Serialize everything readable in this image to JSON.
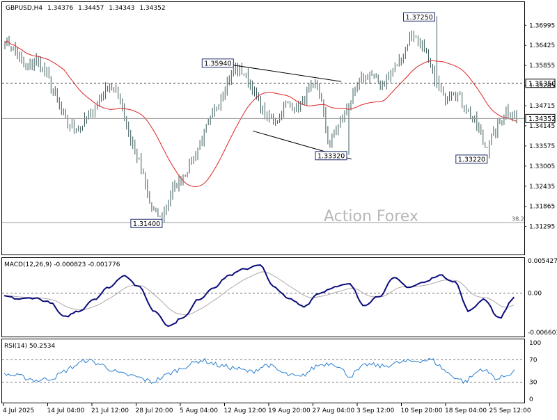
{
  "header": {
    "symbol": "GBPUSD,H4",
    "open": "1.34376",
    "high": "1.34457",
    "low": "1.34343",
    "close": "1.34352"
  },
  "watermark": "Action Forex",
  "colors": {
    "candle": "#3d5c5c",
    "ma": "#dd2222",
    "macd": "#0a0a7a",
    "macd_signal": "#b0a8a8",
    "rsi": "#2a7fd0",
    "grid": "#000000"
  },
  "chart_data": [
    {
      "type": "candlestick",
      "name": "price",
      "ylim": [
        1.305,
        1.3765
      ],
      "y_ticks": [
        "1.36995",
        "1.36425",
        "1.35855",
        "1.35285",
        "1.34715",
        "1.34145",
        "1.33575",
        "1.33005",
        "1.32435",
        "1.31865",
        "1.31295"
      ],
      "x_ticks": [
        "4 Jul 2025",
        "14 Jul 04:00",
        "21 Jul 12:00",
        "28 Jul 20:00",
        "5 Aug 04:00",
        "12 Aug 12:00",
        "19 Aug 20:00",
        "27 Aug 04:00",
        "3 Sep 12:00",
        "10 Sep 20:00",
        "18 Sep 04:00",
        "25 Sep 12:00"
      ],
      "anchors_close": [
        1.366,
        1.3625,
        1.3575,
        1.36,
        1.356,
        1.3485,
        1.342,
        1.3405,
        1.344,
        1.349,
        1.353,
        1.35,
        1.338,
        1.33,
        1.318,
        1.315,
        1.323,
        1.327,
        1.332,
        1.339,
        1.345,
        1.352,
        1.358,
        1.356,
        1.35,
        1.344,
        1.343,
        1.348,
        1.346,
        1.351,
        1.3535,
        1.336,
        1.342,
        1.348,
        1.354,
        1.356,
        1.353,
        1.356,
        1.361,
        1.368,
        1.364,
        1.356,
        1.349,
        1.352,
        1.347,
        1.343,
        1.3355,
        1.34,
        1.346,
        1.3435
      ],
      "swing_labels": [
        {
          "text": "1.37250",
          "value": 1.3725
        },
        {
          "text": "1.35940",
          "value": 1.3594
        },
        {
          "text": "1.33320",
          "value": 1.3332
        },
        {
          "text": "1.33220",
          "value": 1.3322
        },
        {
          "text": "1.31400",
          "value": 1.314
        }
      ],
      "horizontal_levels": [
        {
          "value": 1.3535,
          "style": "dashed",
          "label": "1.35350"
        },
        {
          "value": 1.34352,
          "style": "solid",
          "label": "1.34352"
        },
        {
          "value": 1.314,
          "style": "solid",
          "label": "38.2"
        }
      ],
      "trendlines": [
        {
          "from": [
            0.415,
            1.3594
          ],
          "to": [
            0.66,
            1.354
          ]
        },
        {
          "from": [
            0.488,
            1.34
          ],
          "to": [
            0.68,
            1.332
          ]
        }
      ],
      "moving_average": {
        "period": 55,
        "color": "#dd2222"
      }
    },
    {
      "type": "line",
      "name": "MACD(12,26,9)",
      "title": "MACD(12,26,9) -0.000823 -0.001776",
      "ylim": [
        -0.0073,
        0.0059
      ],
      "y_ticks": [
        "0.005427",
        "0.00",
        "-0.006603"
      ],
      "macd_anchors": [
        -0.0005,
        -0.001,
        -0.0008,
        -0.0015,
        -0.004,
        -0.003,
        -0.001,
        0.001,
        0.003,
        0.001,
        -0.003,
        -0.0055,
        -0.004,
        -0.001,
        0.001,
        0.003,
        0.004,
        0.0048,
        0.001,
        -0.001,
        -0.0022,
        0.0,
        0.001,
        0.0015,
        -0.002,
        -0.0005,
        0.0025,
        0.001,
        0.0018,
        0.003,
        0.002,
        -0.003,
        -0.001,
        -0.0042,
        -0.0008
      ]
    },
    {
      "type": "line",
      "name": "RSI(14)",
      "title": "RSI(14) 50.2534",
      "ylim": [
        0,
        100
      ],
      "y_ticks": [
        "100",
        "70",
        "30",
        "0"
      ],
      "levels": [
        70,
        30
      ],
      "rsi_anchors": [
        45,
        40,
        33,
        38,
        55,
        70,
        60,
        45,
        40,
        30,
        45,
        58,
        70,
        60,
        55,
        48,
        62,
        45,
        38,
        60,
        65,
        40,
        62,
        58,
        65,
        68,
        70,
        45,
        30,
        55,
        35,
        50
      ]
    }
  ]
}
